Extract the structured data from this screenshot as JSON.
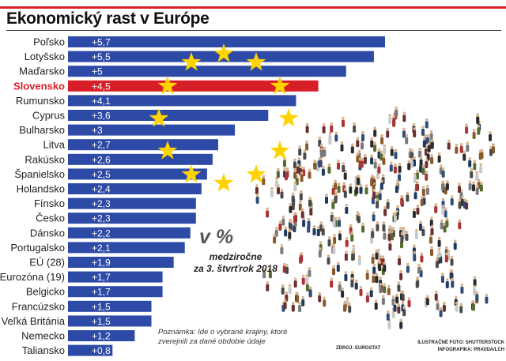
{
  "title": "Ekonomický rast v Európe",
  "colors": {
    "bar": "#2d4aa6",
    "highlight": "#d81e27",
    "star": "#ffd200",
    "title_rule": "#d81e27"
  },
  "unit": {
    "big": "v %",
    "line1": "medziročne",
    "line2": "za 3. štvrťrok 2018"
  },
  "note": "Poznámka: Ide o vybrané krajiny, ktoré zverejnili za dané obdobie údaje",
  "source": "ZDROJ: EUROSTAT",
  "credit": {
    "line1": "ILUSTRAČNÉ FOTO: SHUTTERSTOCK",
    "line2": "INFOGRAFIKA: PRAVDA/LCH"
  },
  "chart_data": {
    "type": "bar",
    "orientation": "horizontal",
    "highlight": "Slovensko",
    "categories": [
      "Poľsko",
      "Lotyšsko",
      "Maďarsko",
      "Slovensko",
      "Rumunsko",
      "Cyprus",
      "Bulharsko",
      "Litva",
      "Rakúsko",
      "Španielsko",
      "Holandsko",
      "Fínsko",
      "Česko",
      "Dánsko",
      "Portugalsko",
      "EÚ (28)",
      "Eurozóna (19)",
      "Belgicko",
      "Francúzsko",
      "Veľká Británia",
      "Nemecko",
      "Taliansko"
    ],
    "values": [
      5.7,
      5.5,
      5,
      4.5,
      4.1,
      3.6,
      3,
      2.7,
      2.6,
      2.5,
      2.4,
      2.3,
      2.3,
      2.2,
      2.1,
      1.9,
      1.7,
      1.7,
      1.5,
      1.5,
      1.2,
      0.8
    ],
    "value_labels": [
      "+5,7",
      "+5,5",
      "+5",
      "+4,5",
      "+4,1",
      "+3,6",
      "+3",
      "+2,7",
      "+2,6",
      "+2,5",
      "+2,4",
      "+2,3",
      "+2,3",
      "+2,2",
      "+2,1",
      "+1,9",
      "+1,7",
      "+1,7",
      "+1,5",
      "+1,5",
      "+1,2",
      "+0,8"
    ],
    "xlim": [
      0,
      5.7
    ],
    "grid": false,
    "legend": "none"
  }
}
